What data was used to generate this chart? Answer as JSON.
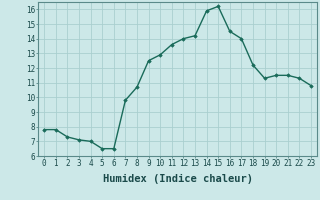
{
  "x": [
    0,
    1,
    2,
    3,
    4,
    5,
    6,
    7,
    8,
    9,
    10,
    11,
    12,
    13,
    14,
    15,
    16,
    17,
    18,
    19,
    20,
    21,
    22,
    23
  ],
  "y": [
    7.8,
    7.8,
    7.3,
    7.1,
    7.0,
    6.5,
    6.5,
    9.8,
    10.7,
    12.5,
    12.9,
    13.6,
    14.0,
    14.2,
    15.9,
    16.2,
    14.5,
    14.0,
    12.2,
    11.3,
    11.5,
    11.5,
    11.3,
    10.8
  ],
  "line_color": "#1a6b5a",
  "marker": "D",
  "marker_size": 1.8,
  "bg_color": "#cce8e8",
  "grid_color": "#aacfcf",
  "xlabel": "Humidex (Indice chaleur)",
  "ylim": [
    6,
    16.5
  ],
  "xlim": [
    -0.5,
    23.5
  ],
  "yticks": [
    6,
    7,
    8,
    9,
    10,
    11,
    12,
    13,
    14,
    15,
    16
  ],
  "xticks": [
    0,
    1,
    2,
    3,
    4,
    5,
    6,
    7,
    8,
    9,
    10,
    11,
    12,
    13,
    14,
    15,
    16,
    17,
    18,
    19,
    20,
    21,
    22,
    23
  ],
  "tick_label_fontsize": 5.5,
  "xlabel_fontsize": 7.5,
  "line_width": 1.0
}
